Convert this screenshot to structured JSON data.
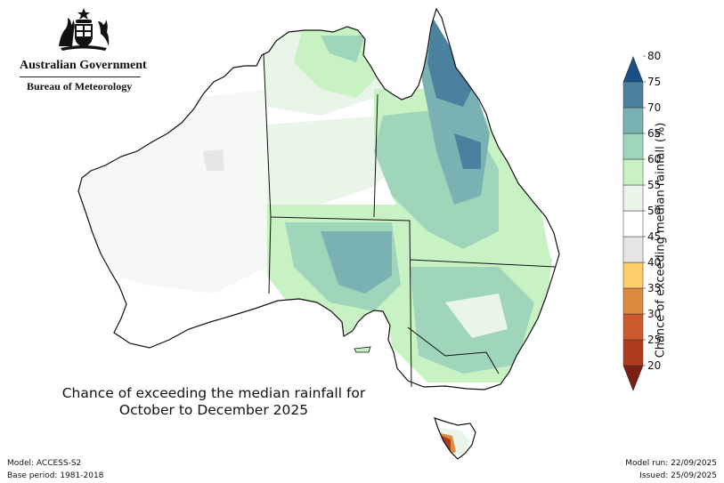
{
  "logo": {
    "crest": "commonwealth-coat-of-arms",
    "line1": "Australian Government",
    "line2": "Bureau of Meteorology"
  },
  "title": {
    "line1": "Chance of exceeding the median rainfall for",
    "line2": "October to December 2025"
  },
  "footer": {
    "model": "Model: ACCESS-S2",
    "base_period": "Base period: 1981-2018",
    "model_run": "Model run: 22/09/2025",
    "issued": "Issued: 25/09/2025"
  },
  "legend": {
    "title": "Chance of exceeding median rainfall (%)",
    "ticks": [
      "20",
      "25",
      "30",
      "35",
      "40",
      "45",
      "50",
      "55",
      "60",
      "65",
      "70",
      "75",
      "80"
    ],
    "colors": [
      "#b03a1e",
      "#cc5a2a",
      "#df8b3e",
      "#fdcd6a",
      "#e6e6e4",
      "#ffffff",
      "#eaf5ea",
      "#c9f2c4",
      "#9fd5bb",
      "#7ab1b2",
      "#4a819f"
    ],
    "low_color": "#7a1f12",
    "high_color": "#1a4e86"
  }
}
